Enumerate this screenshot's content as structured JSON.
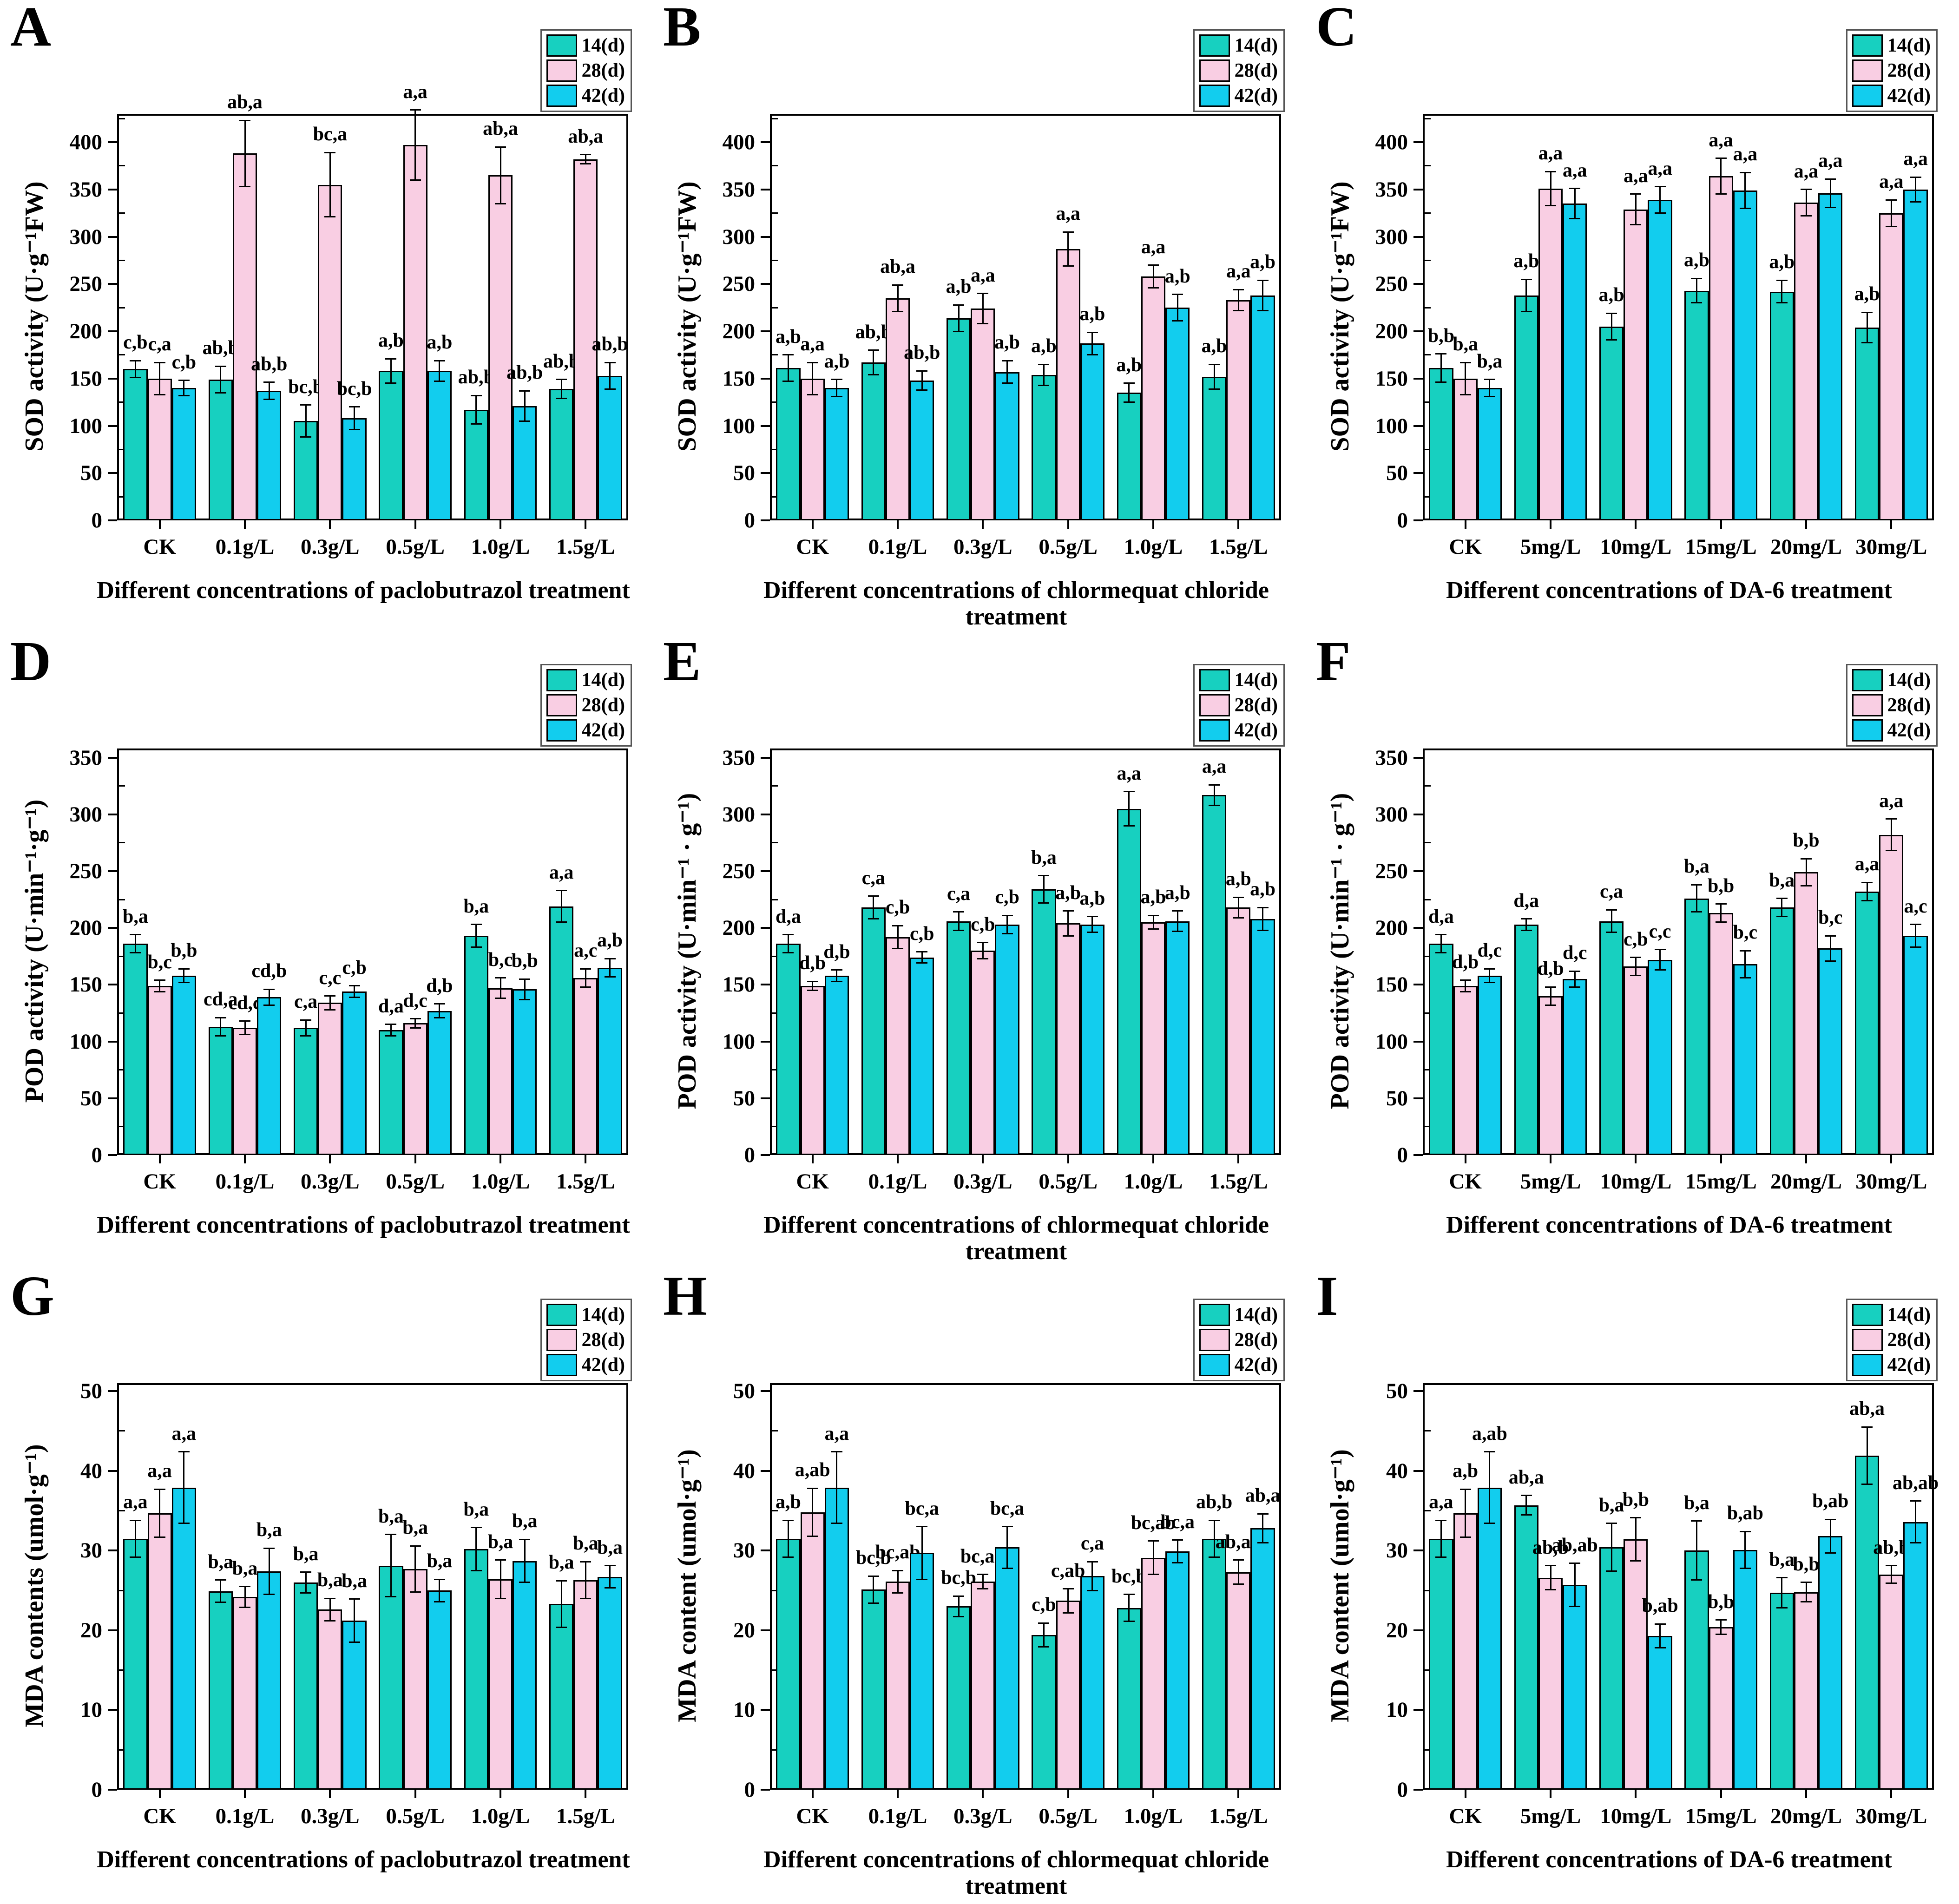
{
  "figure": {
    "legend_labels": [
      "14(d)",
      "28(d)",
      "42(d)"
    ],
    "series_colors": [
      "#17d0c0",
      "#f9cee3",
      "#12cdee"
    ],
    "background": "#ffffff"
  },
  "chart_data": [
    {
      "panel": "A",
      "type": "bar",
      "ylabel": "SOD activity (U·g⁻¹FW)",
      "xlabel": "Different concentrations of paclobutrazol treatment",
      "categories": [
        "CK",
        "0.1g/L",
        "0.3g/L",
        "0.5g/L",
        "1.0g/L",
        "1.5g/L"
      ],
      "ylim": [
        0,
        430
      ],
      "yticks": [
        0,
        50,
        100,
        150,
        200,
        250,
        300,
        350,
        400
      ],
      "minor_step": 25,
      "legend_position": "top-right",
      "grid": false,
      "series": [
        {
          "name": "14(d)",
          "color": "#17d0c0",
          "values": [
            160,
            149,
            105,
            158,
            117,
            139
          ],
          "errors": [
            9,
            14,
            17,
            13,
            15,
            10
          ],
          "sig_labels": [
            "c,b",
            "ab,b",
            "bc,b",
            "a,b",
            "ab,b",
            "ab,b"
          ]
        },
        {
          "name": "28(d)",
          "color": "#f9cee3",
          "values": [
            150,
            388,
            355,
            397,
            365,
            382
          ],
          "errors": [
            17,
            35,
            34,
            37,
            30,
            5
          ],
          "sig_labels": [
            "c,a",
            "ab,a",
            "bc,a",
            "a,a",
            "ab,a",
            "ab,a"
          ]
        },
        {
          "name": "42(d)",
          "color": "#12cdee",
          "values": [
            140,
            137,
            108,
            158,
            121,
            153
          ],
          "errors": [
            8,
            9,
            12,
            11,
            16,
            14
          ],
          "sig_labels": [
            "c,b",
            "ab,b",
            "bc,b",
            "a,b",
            "ab,b",
            "ab,b"
          ]
        }
      ]
    },
    {
      "panel": "B",
      "type": "bar",
      "ylabel": "SOD activity (U·g⁻¹FW)",
      "xlabel": "Different concentrations of chlormequat chloride treatment",
      "categories": [
        "CK",
        "0.1g/L",
        "0.3g/L",
        "0.5g/L",
        "1.0g/L",
        "1.5g/L"
      ],
      "ylim": [
        0,
        430
      ],
      "yticks": [
        0,
        50,
        100,
        150,
        200,
        250,
        300,
        350,
        400
      ],
      "minor_step": 25,
      "legend_position": "top-right",
      "grid": false,
      "series": [
        {
          "name": "14(d)",
          "color": "#17d0c0",
          "values": [
            161,
            167,
            214,
            154,
            135,
            152
          ],
          "errors": [
            14,
            13,
            14,
            11,
            10,
            13
          ],
          "sig_labels": [
            "a,b",
            "ab,b",
            "a,b",
            "a,b",
            "a,b",
            "a,b"
          ]
        },
        {
          "name": "28(d)",
          "color": "#f9cee3",
          "values": [
            150,
            235,
            224,
            287,
            258,
            233
          ],
          "errors": [
            17,
            14,
            16,
            18,
            12,
            11
          ],
          "sig_labels": [
            "a,a",
            "ab,a",
            "a,a",
            "a,a",
            "a,a",
            "a,a"
          ]
        },
        {
          "name": "42(d)",
          "color": "#12cdee",
          "values": [
            140,
            148,
            157,
            187,
            225,
            238
          ],
          "errors": [
            9,
            10,
            12,
            12,
            14,
            16
          ],
          "sig_labels": [
            "a,b",
            "ab,b",
            "a,b",
            "a,b",
            "a,b",
            "a,b"
          ]
        }
      ]
    },
    {
      "panel": "C",
      "type": "bar",
      "ylabel": "SOD activity (U·g⁻¹FW)",
      "xlabel": "Different concentrations of DA-6 treatment",
      "categories": [
        "CK",
        "5mg/L",
        "10mg/L",
        "15mg/L",
        "20mg/L",
        "30mg/L"
      ],
      "ylim": [
        0,
        430
      ],
      "yticks": [
        0,
        50,
        100,
        150,
        200,
        250,
        300,
        350,
        400
      ],
      "minor_step": 25,
      "legend_position": "top-right",
      "grid": false,
      "series": [
        {
          "name": "14(d)",
          "color": "#17d0c0",
          "values": [
            161,
            238,
            205,
            243,
            242,
            204
          ],
          "errors": [
            15,
            17,
            14,
            13,
            12,
            16
          ],
          "sig_labels": [
            "b,b",
            "a,b",
            "a,b",
            "a,b",
            "a,b",
            "a,b"
          ]
        },
        {
          "name": "28(d)",
          "color": "#f9cee3",
          "values": [
            150,
            351,
            329,
            364,
            336,
            325
          ],
          "errors": [
            17,
            18,
            16,
            19,
            14,
            14
          ],
          "sig_labels": [
            "b,a",
            "a,a",
            "a,a",
            "a,a",
            "a,a",
            "a,a"
          ]
        },
        {
          "name": "42(d)",
          "color": "#12cdee",
          "values": [
            140,
            335,
            339,
            349,
            346,
            350
          ],
          "errors": [
            9,
            16,
            14,
            19,
            15,
            13
          ],
          "sig_labels": [
            "b,a",
            "a,a",
            "a,a",
            "a,a",
            "a,a",
            "a,a"
          ]
        }
      ]
    },
    {
      "panel": "D",
      "type": "bar",
      "ylabel": "POD activity (U·min⁻¹·g⁻¹)",
      "xlabel": "Different concentrations of paclobutrazol treatment",
      "categories": [
        "CK",
        "0.1g/L",
        "0.3g/L",
        "0.5g/L",
        "1.0g/L",
        "1.5g/L"
      ],
      "ylim": [
        0,
        358
      ],
      "yticks": [
        0,
        50,
        100,
        150,
        200,
        250,
        300,
        350
      ],
      "minor_step": 25,
      "legend_position": "top-right",
      "grid": false,
      "series": [
        {
          "name": "14(d)",
          "color": "#17d0c0",
          "values": [
            186,
            113,
            112,
            110,
            193,
            219
          ],
          "errors": [
            8,
            8,
            7,
            5,
            10,
            14
          ],
          "sig_labels": [
            "b,a",
            "cd,a",
            "c,a",
            "d,a",
            "b,a",
            "a,a"
          ]
        },
        {
          "name": "28(d)",
          "color": "#f9cee3",
          "values": [
            149,
            112,
            134,
            116,
            147,
            156
          ],
          "errors": [
            5,
            6,
            6,
            4,
            9,
            8
          ],
          "sig_labels": [
            "b,c",
            "cd,c",
            "c,c",
            "d,c",
            "b,c",
            "a,c"
          ]
        },
        {
          "name": "42(d)",
          "color": "#12cdee",
          "values": [
            158,
            139,
            144,
            127,
            146,
            165
          ],
          "errors": [
            6,
            7,
            5,
            6,
            9,
            8
          ],
          "sig_labels": [
            "b,b",
            "cd,b",
            "c,b",
            "d,b",
            "b,b",
            "a,b"
          ]
        }
      ]
    },
    {
      "panel": "E",
      "type": "bar",
      "ylabel": "POD activity (U·min⁻¹ · g⁻¹)",
      "xlabel": "Different concentrations of chlormequat chloride treatment",
      "categories": [
        "CK",
        "0.1g/L",
        "0.3g/L",
        "0.5g/L",
        "1.0g/L",
        "1.5g/L"
      ],
      "ylim": [
        0,
        358
      ],
      "yticks": [
        0,
        50,
        100,
        150,
        200,
        250,
        300,
        350
      ],
      "minor_step": 25,
      "legend_position": "top-right",
      "grid": false,
      "series": [
        {
          "name": "14(d)",
          "color": "#17d0c0",
          "values": [
            186,
            218,
            206,
            234,
            305,
            317
          ],
          "errors": [
            8,
            10,
            8,
            12,
            15,
            9
          ],
          "sig_labels": [
            "d,a",
            "c,a",
            "c,a",
            "b,a",
            "a,a",
            "a,a"
          ]
        },
        {
          "name": "28(d)",
          "color": "#f9cee3",
          "values": [
            149,
            192,
            180,
            204,
            205,
            218
          ],
          "errors": [
            4,
            10,
            7,
            11,
            6,
            9
          ],
          "sig_labels": [
            "d,b",
            "c,b",
            "c,b",
            "a,b",
            "a,b",
            "a,b"
          ]
        },
        {
          "name": "42(d)",
          "color": "#12cdee",
          "values": [
            158,
            174,
            203,
            203,
            206,
            208
          ],
          "errors": [
            5,
            5,
            8,
            7,
            9,
            10
          ],
          "sig_labels": [
            "d,b",
            "c,b",
            "c,b",
            "a,b",
            "a,b",
            "a,b"
          ]
        }
      ]
    },
    {
      "panel": "F",
      "type": "bar",
      "ylabel": "POD activity (U·min⁻¹ · g⁻¹)",
      "xlabel": "Different concentrations of DA-6 treatment",
      "categories": [
        "CK",
        "5mg/L",
        "10mg/L",
        "15mg/L",
        "20mg/L",
        "30mg/L"
      ],
      "ylim": [
        0,
        358
      ],
      "yticks": [
        0,
        50,
        100,
        150,
        200,
        250,
        300,
        350
      ],
      "minor_step": 25,
      "legend_position": "top-right",
      "grid": false,
      "series": [
        {
          "name": "14(d)",
          "color": "#17d0c0",
          "values": [
            186,
            203,
            206,
            226,
            218,
            232
          ],
          "errors": [
            8,
            5,
            10,
            12,
            8,
            8
          ],
          "sig_labels": [
            "d,a",
            "d,a",
            "c,a",
            "b,a",
            "b,a",
            "a,a"
          ]
        },
        {
          "name": "28(d)",
          "color": "#f9cee3",
          "values": [
            149,
            140,
            166,
            213,
            249,
            282
          ],
          "errors": [
            5,
            8,
            8,
            8,
            12,
            14
          ],
          "sig_labels": [
            "d,b",
            "d,b",
            "c,b",
            "b,b",
            "b,b",
            "a,a"
          ]
        },
        {
          "name": "42(d)",
          "color": "#12cdee",
          "values": [
            158,
            155,
            172,
            168,
            182,
            193
          ],
          "errors": [
            6,
            7,
            9,
            12,
            11,
            10
          ],
          "sig_labels": [
            "d,c",
            "d,c",
            "c,c",
            "b,c",
            "b,c",
            "a,c"
          ]
        }
      ]
    },
    {
      "panel": "G",
      "type": "bar",
      "ylabel": "MDA contents (umol·g⁻¹)",
      "xlabel": "Different concentrations of paclobutrazol treatment",
      "categories": [
        "CK",
        "0.1g/L",
        "0.3g/L",
        "0.5g/L",
        "1.0g/L",
        "1.5g/L"
      ],
      "ylim": [
        0,
        51
      ],
      "yticks": [
        0,
        10,
        20,
        30,
        40,
        50
      ],
      "minor_step": 5,
      "legend_position": "top-right",
      "grid": false,
      "series": [
        {
          "name": "14(d)",
          "color": "#17d0c0",
          "values": [
            31.5,
            24.9,
            26.0,
            28.1,
            30.2,
            23.3
          ],
          "errors": [
            2.3,
            1.4,
            1.3,
            3.9,
            2.7,
            2.9
          ],
          "sig_labels": [
            "a,a",
            "b,a",
            "b,a",
            "b,a",
            "b,a",
            "b,a"
          ]
        },
        {
          "name": "28(d)",
          "color": "#f9cee3",
          "values": [
            34.7,
            24.2,
            22.6,
            27.7,
            26.4,
            26.3
          ],
          "errors": [
            3.0,
            1.3,
            1.4,
            2.9,
            2.4,
            2.3
          ],
          "sig_labels": [
            "a,a",
            "b,a",
            "b,a",
            "b,a",
            "b,a",
            "b,a"
          ]
        },
        {
          "name": "42(d)",
          "color": "#12cdee",
          "values": [
            37.9,
            27.4,
            21.2,
            25.0,
            28.7,
            26.7
          ],
          "errors": [
            4.5,
            2.9,
            2.7,
            1.4,
            2.7,
            1.4
          ],
          "sig_labels": [
            "a,a",
            "b,a",
            "b,a",
            "b,a",
            "b,a",
            "b,a"
          ]
        }
      ]
    },
    {
      "panel": "H",
      "type": "bar",
      "ylabel": "MDA content (umol·g⁻¹)",
      "xlabel": "Different concentrations of chlormequat chloride treatment",
      "categories": [
        "CK",
        "0.1g/L",
        "0.3g/L",
        "0.5g/L",
        "1.0g/L",
        "1.5g/L"
      ],
      "ylim": [
        0,
        51
      ],
      "yticks": [
        0,
        10,
        20,
        30,
        40,
        50
      ],
      "minor_step": 5,
      "legend_position": "top-right",
      "grid": false,
      "series": [
        {
          "name": "14(d)",
          "color": "#17d0c0",
          "values": [
            31.5,
            25.1,
            23.0,
            19.4,
            22.8,
            31.5
          ],
          "errors": [
            2.3,
            1.7,
            1.3,
            1.5,
            1.7,
            2.3
          ],
          "sig_labels": [
            "a,b",
            "bc,b",
            "bc,b",
            "c,b",
            "bc,b",
            "ab,b"
          ]
        },
        {
          "name": "28(d)",
          "color": "#f9cee3",
          "values": [
            34.8,
            26.1,
            26.1,
            23.7,
            29.1,
            27.3
          ],
          "errors": [
            3.0,
            1.4,
            0.9,
            1.5,
            2.1,
            1.5
          ],
          "sig_labels": [
            "a,ab",
            "bc,ab",
            "bc,ab",
            "c,ab",
            "bc,ab",
            "ab,ab"
          ]
        },
        {
          "name": "42(d)",
          "color": "#12cdee",
          "values": [
            37.9,
            29.7,
            30.4,
            26.8,
            29.9,
            32.8
          ],
          "errors": [
            4.5,
            3.3,
            2.6,
            1.8,
            1.4,
            1.8
          ],
          "sig_labels": [
            "a,a",
            "bc,a",
            "bc,a",
            "c,a",
            "bc,a",
            "ab,a"
          ]
        }
      ]
    },
    {
      "panel": "I",
      "type": "bar",
      "ylabel": "MDA content (umol·g⁻¹)",
      "xlabel": "Different concentrations of DA-6 treatment",
      "categories": [
        "CK",
        "5mg/L",
        "10mg/L",
        "15mg/L",
        "20mg/L",
        "30mg/L"
      ],
      "ylim": [
        0,
        51
      ],
      "yticks": [
        0,
        10,
        20,
        30,
        40,
        50
      ],
      "minor_step": 5,
      "legend_position": "top-right",
      "grid": false,
      "series": [
        {
          "name": "14(d)",
          "color": "#17d0c0",
          "values": [
            31.5,
            35.7,
            30.4,
            30.0,
            24.7,
            41.9
          ],
          "errors": [
            2.3,
            1.2,
            3.0,
            3.7,
            1.9,
            3.6
          ],
          "sig_labels": [
            "a,a",
            "ab,a",
            "b,a",
            "b,a",
            "b,a",
            "ab,a"
          ]
        },
        {
          "name": "28(d)",
          "color": "#f9cee3",
          "values": [
            34.7,
            26.6,
            31.4,
            20.4,
            24.8,
            27.0
          ],
          "errors": [
            3.0,
            1.5,
            2.7,
            0.9,
            1.2,
            1.1
          ],
          "sig_labels": [
            "a,b",
            "ab,b",
            "b,b",
            "b,b",
            "b,b",
            "ab,b"
          ]
        },
        {
          "name": "42(d)",
          "color": "#12cdee",
          "values": [
            37.9,
            25.7,
            19.3,
            30.1,
            31.8,
            33.6
          ],
          "errors": [
            4.5,
            2.7,
            1.5,
            2.3,
            2.1,
            2.6
          ],
          "sig_labels": [
            "a,ab",
            "ab,ab",
            "b,ab",
            "b,ab",
            "b,ab",
            "ab,ab"
          ]
        }
      ]
    }
  ]
}
